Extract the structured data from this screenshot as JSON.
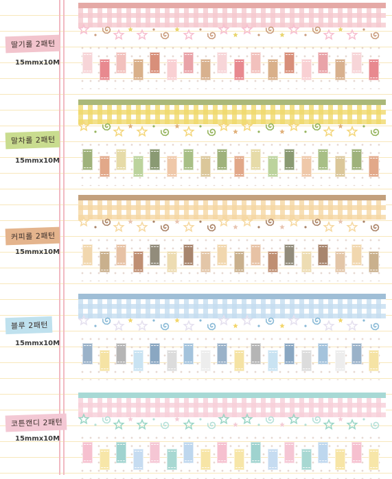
{
  "products": [
    {
      "id": "strawberry",
      "label": "딸기롤 2패턴",
      "size": "15mmx10M",
      "colors": {
        "label_bg": "#f2c4cd",
        "stripe": "#e5a9a6",
        "check": "#f5c9cf",
        "star": "#f7bfd0",
        "spiral": "#c99b7b",
        "accent": "#e9d56c",
        "tabs": [
          "#f7d5d8",
          "#e8898f",
          "#f2c1bd",
          "#d9b08a",
          "#d88f7a",
          "#f9d0d3",
          "#e9a3a8",
          "#d8b18e"
        ]
      }
    },
    {
      "id": "matcha",
      "label": "말차롤 2패턴",
      "size": "15mmx10M",
      "colors": {
        "label_bg": "#c9dc8f",
        "stripe": "#aab879",
        "check": "#f0d96c",
        "star": "#f4d77e",
        "spiral": "#94b35b",
        "accent": "#e0b07a",
        "tabs": [
          "#9fb27b",
          "#e2a889",
          "#e6dba8",
          "#bcd39d",
          "#8a9a73",
          "#efc8a9",
          "#a8bf86",
          "#dbc79a"
        ]
      }
    },
    {
      "id": "coffee",
      "label": "커피롤 2패턴",
      "size": "15mmx10M",
      "colors": {
        "label_bg": "#e4b48d",
        "stripe": "#c3a07d",
        "check": "#f5d7a3",
        "star": "#f6d9a2",
        "spiral": "#a98266",
        "accent": "#e8c4b0",
        "tabs": [
          "#f1d7ae",
          "#c9b08d",
          "#e7c2a5",
          "#bf8f73",
          "#928c7b",
          "#eddcb2",
          "#a8856d",
          "#e3c6a8"
        ]
      }
    },
    {
      "id": "blue",
      "label": "블루 2패턴",
      "size": "15mmx10M",
      "colors": {
        "label_bg": "#bfe1ee",
        "stripe": "#9fbed6",
        "check": "#c5ddf0",
        "star": "#e5e0ef",
        "spiral": "#88b9d6",
        "accent": "#f3d66a",
        "tabs": [
          "#9ab2c9",
          "#f5e3a4",
          "#b5b5b5",
          "#c9e3f2",
          "#8aa7c2",
          "#dcdcdc",
          "#a4c3dc",
          "#ededed"
        ]
      }
    },
    {
      "id": "cotton-candy",
      "label": "코튼캔디 2패턴",
      "size": "15mmx10M",
      "colors": {
        "label_bg": "#f3c8d4",
        "stripe": "#a7d9d5",
        "check": "#f7cfd9",
        "star": "#9bd6c6",
        "spiral": "#b5e0d8",
        "accent": "#f3cbd5",
        "tabs": [
          "#f6c0cf",
          "#f7e6a8",
          "#9fd3cf",
          "#c6dcf1",
          "#f5c6d4",
          "#a8d8d2",
          "#bed7ee",
          "#f7e5a6"
        ]
      }
    }
  ]
}
